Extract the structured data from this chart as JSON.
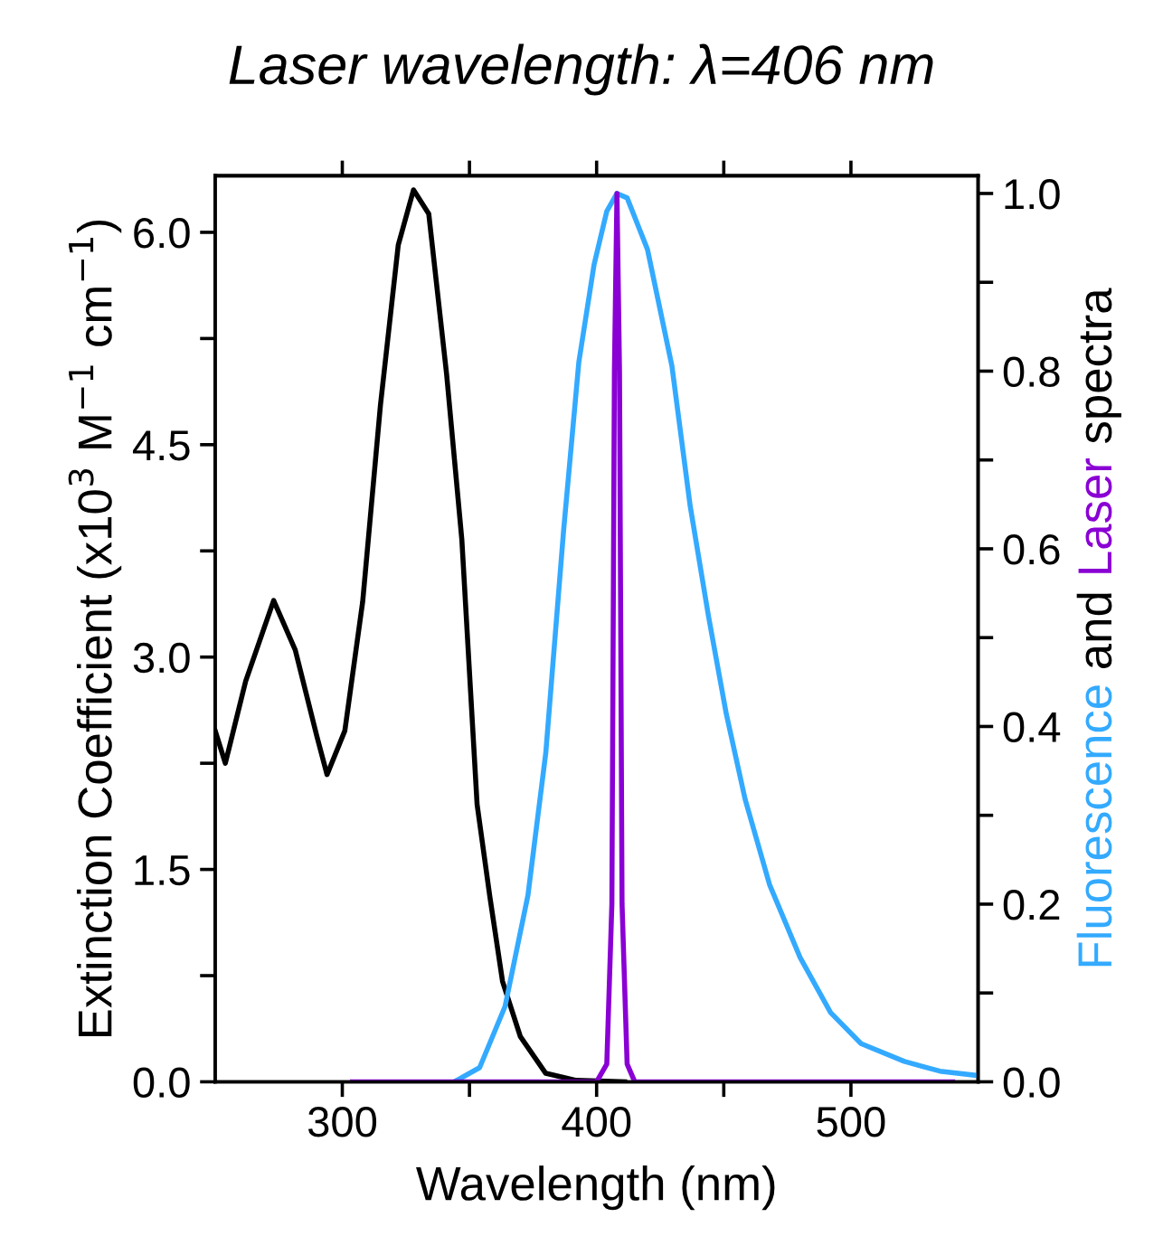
{
  "chart_data": {
    "type": "line",
    "title": "Laser wavelength: λ=406 nm",
    "xlabel": "Wavelength (nm)",
    "ylabel": "Extinction Coefficient (x10$^{3}$ M$^{−1}$ cm$^{−1}$)",
    "y2label": [
      "Fluorescence",
      " and ",
      "Laser",
      " spectra"
    ],
    "xlim": [
      250,
      550
    ],
    "xticks": [
      300,
      {
        "value": 350,
        "label": null
      },
      400,
      {
        "value": 450,
        "label": null
      },
      500
    ],
    "ylim": [
      0,
      6.4
    ],
    "yticks": [
      {
        "value": 0,
        "label": "0.0"
      },
      {
        "value": 0.75,
        "label": null
      },
      1.5,
      {
        "value": 2.25,
        "label": null
      },
      {
        "value": 3,
        "label": "3.0"
      },
      {
        "value": 3.75,
        "label": null
      },
      4.5,
      {
        "value": 5.25,
        "label": null
      },
      {
        "value": 6,
        "label": "6.0"
      }
    ],
    "y2lim": [
      0,
      1.02
    ],
    "y2ticks": [
      {
        "value": 0,
        "label": "0.0"
      },
      {
        "value": 0.1,
        "label": null
      },
      0.2,
      {
        "value": 0.3,
        "label": null
      },
      0.4,
      {
        "value": 0.5,
        "label": null
      },
      0.6,
      {
        "value": 0.7,
        "label": null
      },
      0.8,
      {
        "value": 0.9,
        "label": null
      },
      {
        "value": 1,
        "label": "1.0"
      }
    ],
    "grid": false,
    "legend": false,
    "marker": "none",
    "line_style": "solid",
    "series": [
      {
        "color": "#000000",
        "x": [
          250,
          254,
          262,
          273,
          281.5,
          290,
          294,
          301,
          308,
          315,
          322,
          328,
          334,
          341,
          347,
          353,
          358,
          363,
          370,
          380,
          392,
          411
        ],
        "values": [
          2.48,
          2.25,
          2.83,
          3.4,
          3.05,
          2.44,
          2.17,
          2.48,
          3.39,
          4.78,
          5.91,
          6.3,
          6.13,
          5.0,
          3.83,
          1.96,
          1.31,
          0.71,
          0.32,
          0.06,
          0.01,
          0.0
        ]
      },
      {
        "color": "#33aaff",
        "axis": "y2",
        "x": [
          344,
          354,
          364,
          373,
          380,
          387,
          393,
          399,
          404,
          408,
          412,
          420,
          429.6,
          436.8,
          444,
          451,
          458.4,
          468,
          480,
          492,
          504,
          521,
          535,
          550
        ],
        "values": [
          0.0,
          0.016,
          0.085,
          0.21,
          0.37,
          0.62,
          0.81,
          0.92,
          0.98,
          1.0,
          0.995,
          0.937,
          0.806,
          0.648,
          0.524,
          0.414,
          0.318,
          0.222,
          0.14,
          0.078,
          0.043,
          0.023,
          0.012,
          0.007
        ]
      },
      {
        "color": "#8a00d4",
        "axis": "y2",
        "x": [
          304,
          400,
          404,
          406,
          407,
          408,
          409,
          410,
          412,
          415,
          540
        ],
        "values": [
          0.0,
          0.0,
          0.02,
          0.2,
          0.8,
          1.0,
          0.8,
          0.2,
          0.02,
          0.0,
          0.0
        ]
      }
    ]
  }
}
